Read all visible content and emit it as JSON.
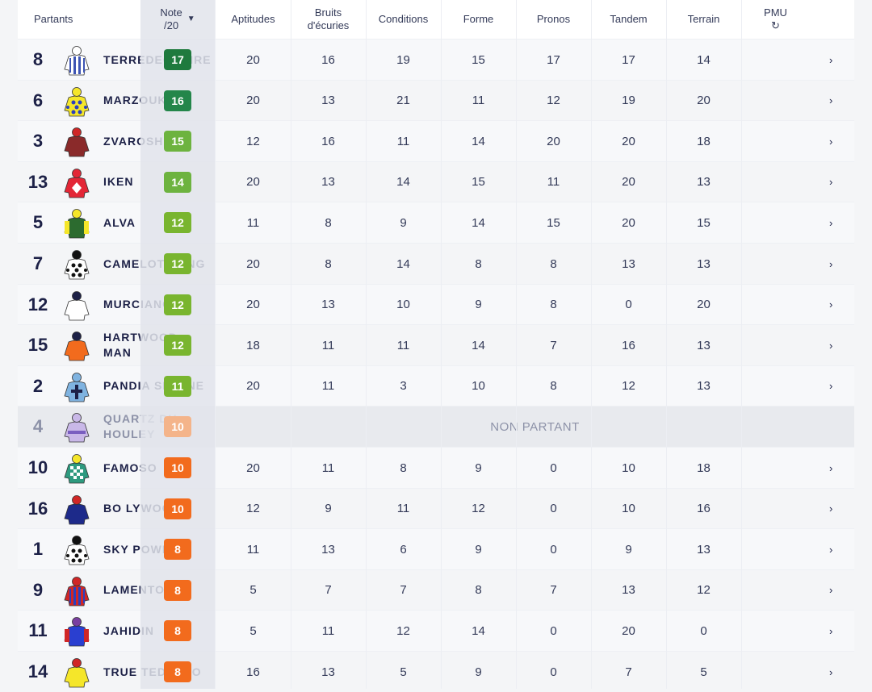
{
  "header": {
    "partants": "Partants",
    "note_line1": "Note",
    "note_line2": "/20",
    "aptitudes": "Aptitudes",
    "bruits_line1": "Bruits",
    "bruits_line2": "d'écuries",
    "conditions": "Conditions",
    "forme": "Forme",
    "pronos": "Pronos",
    "tandem": "Tandem",
    "terrain": "Terrain",
    "pmu": "PMU"
  },
  "icons": {
    "sort": "caret-down-icon",
    "refresh": "refresh-icon",
    "detail": "chevron-right-icon"
  },
  "badge_colors": {
    "17": "#1f7a3e",
    "16": "#24864a",
    "15": "#6db33f",
    "14": "#6db33f",
    "12": "#79b52f",
    "11": "#79b52f",
    "10": "#f26b1d",
    "8": "#f26b1d",
    "np": "#f4b48a"
  },
  "rows": [
    {
      "num": "8",
      "name": "TERREDEGLOIRE",
      "note": "17",
      "vals": [
        "20",
        "16",
        "19",
        "15",
        "17",
        "17",
        "14"
      ],
      "silk": {
        "body": "#ffffff",
        "stripe": "#3d54b3",
        "pattern": "stripes",
        "cap": "#ffffff"
      }
    },
    {
      "num": "6",
      "name": "MARZOUK",
      "note": "16",
      "vals": [
        "20",
        "13",
        "21",
        "11",
        "12",
        "19",
        "20"
      ],
      "silk": {
        "body": "#f5e62a",
        "stripe": "#2a3fbf",
        "pattern": "dots",
        "cap": "#f5e62a"
      }
    },
    {
      "num": "3",
      "name": "ZVAROSHKA",
      "note": "15",
      "vals": [
        "12",
        "16",
        "11",
        "14",
        "20",
        "20",
        "18"
      ],
      "silk": {
        "body": "#8a2a2a",
        "stripe": "#8a2a2a",
        "pattern": "plain",
        "cap": "#d02626"
      }
    },
    {
      "num": "13",
      "name": "IKEN",
      "note": "14",
      "vals": [
        "20",
        "13",
        "14",
        "15",
        "11",
        "20",
        "13"
      ],
      "silk": {
        "body": "#e32636",
        "stripe": "#ffffff",
        "pattern": "diamond",
        "cap": "#e32636"
      }
    },
    {
      "num": "5",
      "name": "ALVA",
      "note": "12",
      "vals": [
        "11",
        "8",
        "9",
        "14",
        "15",
        "20",
        "15"
      ],
      "silk": {
        "body": "#2c6b2f",
        "stripe": "#f5e62a",
        "pattern": "sleeves",
        "cap": "#f5e62a"
      }
    },
    {
      "num": "7",
      "name": "CAMELOT SONG",
      "note": "12",
      "vals": [
        "20",
        "8",
        "14",
        "8",
        "8",
        "13",
        "13"
      ],
      "silk": {
        "body": "#ffffff",
        "stripe": "#111111",
        "pattern": "dots",
        "cap": "#111111"
      }
    },
    {
      "num": "12",
      "name": "MURCIANO",
      "note": "12",
      "vals": [
        "20",
        "13",
        "10",
        "9",
        "8",
        "0",
        "20"
      ],
      "silk": {
        "body": "#ffffff",
        "stripe": "#1d2147",
        "pattern": "plain",
        "cap": "#1d2147"
      }
    },
    {
      "num": "15",
      "name": "HARTWOOD MAN",
      "note": "12",
      "vals": [
        "18",
        "11",
        "11",
        "14",
        "7",
        "16",
        "13"
      ],
      "silk": {
        "body": "#f26b1d",
        "stripe": "#1d2147",
        "pattern": "plain",
        "cap": "#1d2147"
      }
    },
    {
      "num": "2",
      "name": "PANDIA SELENE",
      "note": "11",
      "vals": [
        "20",
        "11",
        "3",
        "10",
        "8",
        "12",
        "13"
      ],
      "silk": {
        "body": "#7fb3e0",
        "stripe": "#1d2147",
        "pattern": "cross",
        "cap": "#7fb3e0"
      }
    },
    {
      "num": "4",
      "name": "QUARTZ DU HOULEY",
      "note": "10",
      "np": true,
      "np_text": "NON PARTANT",
      "silk": {
        "body": "#c9b8e8",
        "stripe": "#7a5fc0",
        "pattern": "band",
        "cap": "#c9b8e8"
      }
    },
    {
      "num": "10",
      "name": "FAMOSO",
      "note": "10",
      "vals": [
        "20",
        "11",
        "8",
        "9",
        "0",
        "10",
        "18"
      ],
      "silk": {
        "body": "#2e9a7f",
        "stripe": "#ffffff",
        "pattern": "check",
        "cap": "#f5e62a"
      }
    },
    {
      "num": "16",
      "name": "BO LYWOOD",
      "note": "10",
      "vals": [
        "12",
        "9",
        "11",
        "12",
        "0",
        "10",
        "16"
      ],
      "silk": {
        "body": "#1d2a8a",
        "stripe": "#1d2a8a",
        "pattern": "plain",
        "cap": "#d02626"
      }
    },
    {
      "num": "1",
      "name": "SKY POWER",
      "note": "8",
      "vals": [
        "11",
        "13",
        "6",
        "9",
        "0",
        "9",
        "13"
      ],
      "silk": {
        "body": "#ffffff",
        "stripe": "#111111",
        "pattern": "dots",
        "cap": "#111111"
      }
    },
    {
      "num": "9",
      "name": "LAMENTO",
      "note": "8",
      "vals": [
        "5",
        "7",
        "7",
        "8",
        "7",
        "13",
        "12"
      ],
      "silk": {
        "body": "#d02626",
        "stripe": "#2a3fbf",
        "pattern": "stripes",
        "cap": "#d02626"
      }
    },
    {
      "num": "11",
      "name": "JAHIDIN",
      "note": "8",
      "vals": [
        "5",
        "11",
        "12",
        "14",
        "0",
        "20",
        "0"
      ],
      "silk": {
        "body": "#2a3fd0",
        "stripe": "#d02626",
        "pattern": "sleeves",
        "cap": "#7a3fa0"
      }
    },
    {
      "num": "14",
      "name": "TRUE TEDESCO",
      "note": "8",
      "vals": [
        "16",
        "13",
        "5",
        "9",
        "0",
        "7",
        "5"
      ],
      "silk": {
        "body": "#f5e62a",
        "stripe": "#f5e62a",
        "pattern": "plain",
        "cap": "#d02626"
      }
    }
  ]
}
